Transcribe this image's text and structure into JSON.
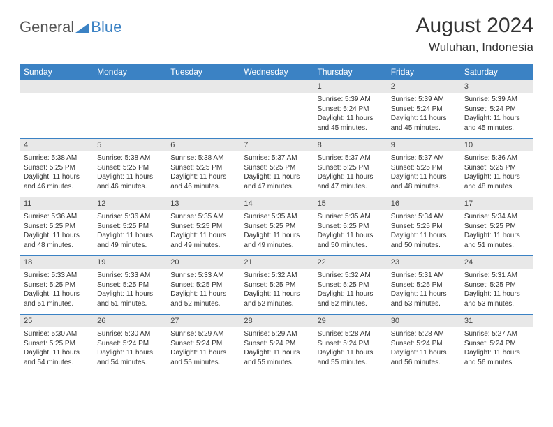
{
  "logo": {
    "general": "General",
    "blue": "Blue"
  },
  "title": "August 2024",
  "location": "Wuluhan, Indonesia",
  "colors": {
    "header_bg": "#3b82c4",
    "header_text": "#ffffff",
    "daynum_bg": "#e8e8e8",
    "border": "#3b82c4",
    "text": "#333333",
    "logo_gray": "#555555",
    "logo_blue": "#3b82c4",
    "page_bg": "#ffffff"
  },
  "typography": {
    "title_fontsize": 30,
    "location_fontsize": 17,
    "weekday_fontsize": 12,
    "daynum_fontsize": 11,
    "cell_fontsize": 10
  },
  "weekdays": [
    "Sunday",
    "Monday",
    "Tuesday",
    "Wednesday",
    "Thursday",
    "Friday",
    "Saturday"
  ],
  "weeks": [
    [
      null,
      null,
      null,
      null,
      {
        "day": "1",
        "sunrise": "5:39 AM",
        "sunset": "5:24 PM",
        "daylight": "11 hours and 45 minutes."
      },
      {
        "day": "2",
        "sunrise": "5:39 AM",
        "sunset": "5:24 PM",
        "daylight": "11 hours and 45 minutes."
      },
      {
        "day": "3",
        "sunrise": "5:39 AM",
        "sunset": "5:24 PM",
        "daylight": "11 hours and 45 minutes."
      }
    ],
    [
      {
        "day": "4",
        "sunrise": "5:38 AM",
        "sunset": "5:25 PM",
        "daylight": "11 hours and 46 minutes."
      },
      {
        "day": "5",
        "sunrise": "5:38 AM",
        "sunset": "5:25 PM",
        "daylight": "11 hours and 46 minutes."
      },
      {
        "day": "6",
        "sunrise": "5:38 AM",
        "sunset": "5:25 PM",
        "daylight": "11 hours and 46 minutes."
      },
      {
        "day": "7",
        "sunrise": "5:37 AM",
        "sunset": "5:25 PM",
        "daylight": "11 hours and 47 minutes."
      },
      {
        "day": "8",
        "sunrise": "5:37 AM",
        "sunset": "5:25 PM",
        "daylight": "11 hours and 47 minutes."
      },
      {
        "day": "9",
        "sunrise": "5:37 AM",
        "sunset": "5:25 PM",
        "daylight": "11 hours and 48 minutes."
      },
      {
        "day": "10",
        "sunrise": "5:36 AM",
        "sunset": "5:25 PM",
        "daylight": "11 hours and 48 minutes."
      }
    ],
    [
      {
        "day": "11",
        "sunrise": "5:36 AM",
        "sunset": "5:25 PM",
        "daylight": "11 hours and 48 minutes."
      },
      {
        "day": "12",
        "sunrise": "5:36 AM",
        "sunset": "5:25 PM",
        "daylight": "11 hours and 49 minutes."
      },
      {
        "day": "13",
        "sunrise": "5:35 AM",
        "sunset": "5:25 PM",
        "daylight": "11 hours and 49 minutes."
      },
      {
        "day": "14",
        "sunrise": "5:35 AM",
        "sunset": "5:25 PM",
        "daylight": "11 hours and 49 minutes."
      },
      {
        "day": "15",
        "sunrise": "5:35 AM",
        "sunset": "5:25 PM",
        "daylight": "11 hours and 50 minutes."
      },
      {
        "day": "16",
        "sunrise": "5:34 AM",
        "sunset": "5:25 PM",
        "daylight": "11 hours and 50 minutes."
      },
      {
        "day": "17",
        "sunrise": "5:34 AM",
        "sunset": "5:25 PM",
        "daylight": "11 hours and 51 minutes."
      }
    ],
    [
      {
        "day": "18",
        "sunrise": "5:33 AM",
        "sunset": "5:25 PM",
        "daylight": "11 hours and 51 minutes."
      },
      {
        "day": "19",
        "sunrise": "5:33 AM",
        "sunset": "5:25 PM",
        "daylight": "11 hours and 51 minutes."
      },
      {
        "day": "20",
        "sunrise": "5:33 AM",
        "sunset": "5:25 PM",
        "daylight": "11 hours and 52 minutes."
      },
      {
        "day": "21",
        "sunrise": "5:32 AM",
        "sunset": "5:25 PM",
        "daylight": "11 hours and 52 minutes."
      },
      {
        "day": "22",
        "sunrise": "5:32 AM",
        "sunset": "5:25 PM",
        "daylight": "11 hours and 52 minutes."
      },
      {
        "day": "23",
        "sunrise": "5:31 AM",
        "sunset": "5:25 PM",
        "daylight": "11 hours and 53 minutes."
      },
      {
        "day": "24",
        "sunrise": "5:31 AM",
        "sunset": "5:25 PM",
        "daylight": "11 hours and 53 minutes."
      }
    ],
    [
      {
        "day": "25",
        "sunrise": "5:30 AM",
        "sunset": "5:25 PM",
        "daylight": "11 hours and 54 minutes."
      },
      {
        "day": "26",
        "sunrise": "5:30 AM",
        "sunset": "5:24 PM",
        "daylight": "11 hours and 54 minutes."
      },
      {
        "day": "27",
        "sunrise": "5:29 AM",
        "sunset": "5:24 PM",
        "daylight": "11 hours and 55 minutes."
      },
      {
        "day": "28",
        "sunrise": "5:29 AM",
        "sunset": "5:24 PM",
        "daylight": "11 hours and 55 minutes."
      },
      {
        "day": "29",
        "sunrise": "5:28 AM",
        "sunset": "5:24 PM",
        "daylight": "11 hours and 55 minutes."
      },
      {
        "day": "30",
        "sunrise": "5:28 AM",
        "sunset": "5:24 PM",
        "daylight": "11 hours and 56 minutes."
      },
      {
        "day": "31",
        "sunrise": "5:27 AM",
        "sunset": "5:24 PM",
        "daylight": "11 hours and 56 minutes."
      }
    ]
  ],
  "labels": {
    "sunrise": "Sunrise:",
    "sunset": "Sunset:",
    "daylight": "Daylight:"
  }
}
